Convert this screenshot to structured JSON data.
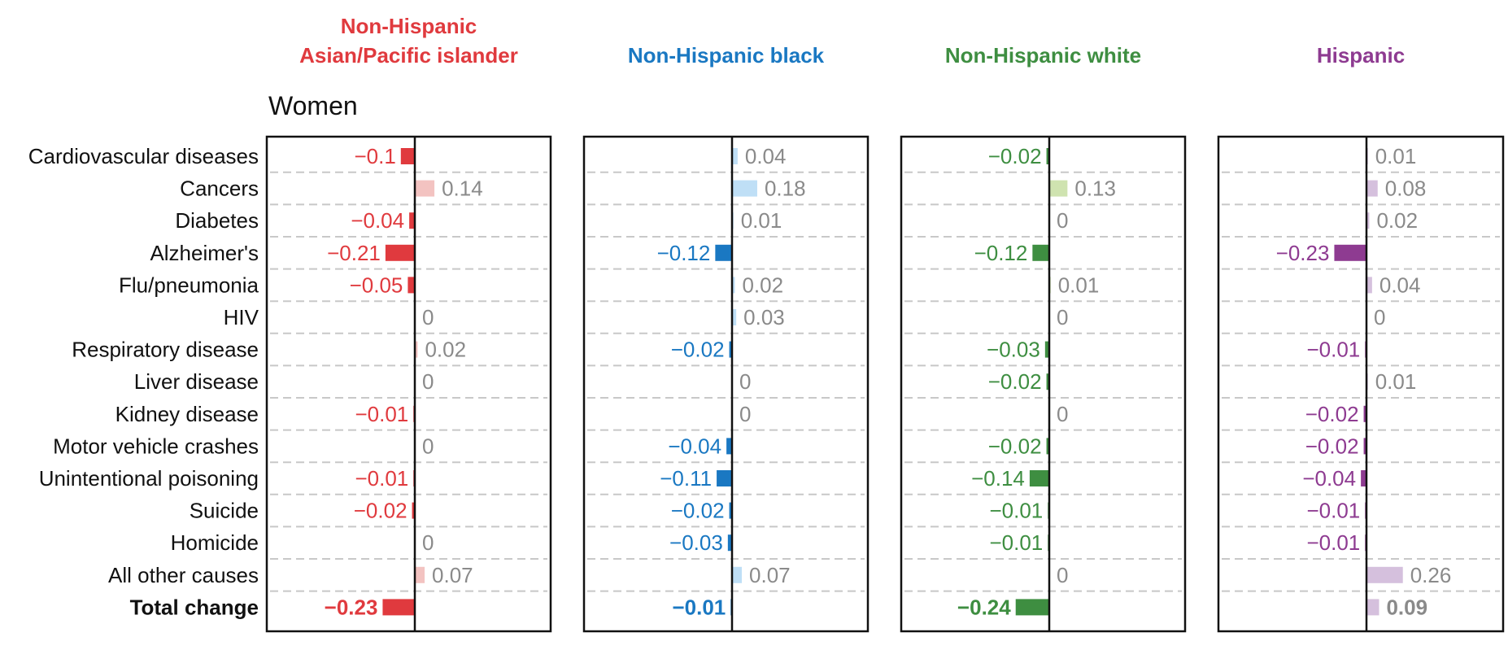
{
  "chart_data": {
    "type": "bar",
    "subtitle": "Women",
    "categories": [
      "Cardiovascular diseases",
      "Cancers",
      "Diabetes",
      "Alzheimer's",
      "Flu/pneumonia",
      "HIV",
      "Respiratory disease",
      "Liver disease",
      "Kidney disease",
      "Motor vehicle crashes",
      "Unintentional poisoning",
      "Suicide",
      "Homicide",
      "All other causes",
      "Total change"
    ],
    "value_labels": {
      "non_hispanic_asian_pacific_islander": [
        "−0.1",
        "0.14",
        "−0.04",
        "−0.21",
        "−0.05",
        "0",
        "0.02",
        "0",
        "−0.01",
        "0",
        "−0.01",
        "−0.02",
        "0",
        "0.07",
        "−0.23"
      ],
      "non_hispanic_black": [
        "0.04",
        "0.18",
        "0.01",
        "−0.12",
        "0.02",
        "0.03",
        "−0.02",
        "0",
        "0",
        "−0.04",
        "−0.11",
        "−0.02",
        "−0.03",
        "0.07",
        "−0.01"
      ],
      "non_hispanic_white": [
        "−0.02",
        "0.13",
        "0",
        "−0.12",
        "0.01",
        "0",
        "−0.03",
        "−0.02",
        "0",
        "−0.02",
        "−0.14",
        "−0.01",
        "−0.01",
        "0",
        "−0.24"
      ],
      "hispanic": [
        "0.01",
        "0.08",
        "0.02",
        "−0.23",
        "0.04",
        "0",
        "−0.01",
        "0.01",
        "−0.02",
        "−0.02",
        "−0.04",
        "−0.01",
        "−0.01",
        "0.26",
        "0.09"
      ]
    },
    "series": [
      {
        "name": "Non-Hispanic Asian/Pacific islander",
        "title_lines": [
          "Non-Hispanic",
          "Asian/Pacific islander"
        ],
        "color": "#e03a3e",
        "light_color": "#f3c3c1",
        "label_key": "non_hispanic_asian_pacific_islander",
        "values": [
          -0.1,
          0.14,
          -0.04,
          -0.21,
          -0.05,
          0,
          0.02,
          0,
          -0.01,
          0,
          -0.01,
          -0.02,
          0,
          0.07,
          -0.23
        ]
      },
      {
        "name": "Non-Hispanic black",
        "title_lines": [
          "Non-Hispanic black"
        ],
        "color": "#1a78c2",
        "light_color": "#bfdff6",
        "label_key": "non_hispanic_black",
        "values": [
          0.04,
          0.18,
          0.01,
          -0.12,
          0.02,
          0.03,
          -0.02,
          0,
          0,
          -0.04,
          -0.11,
          -0.02,
          -0.03,
          0.07,
          -0.01
        ]
      },
      {
        "name": "Non-Hispanic white",
        "title_lines": [
          "Non-Hispanic white"
        ],
        "color": "#3e8e41",
        "light_color": "#cfe3b0",
        "label_key": "non_hispanic_white",
        "values": [
          -0.02,
          0.13,
          0,
          -0.12,
          0.01,
          0,
          -0.03,
          -0.02,
          0,
          -0.02,
          -0.14,
          -0.01,
          -0.01,
          0,
          -0.24
        ]
      },
      {
        "name": "Hispanic",
        "title_lines": [
          "Hispanic"
        ],
        "color": "#8e3b91",
        "light_color": "#d5c0dd",
        "label_key": "hispanic",
        "values": [
          0.01,
          0.08,
          0.02,
          -0.23,
          0.04,
          0,
          -0.01,
          0.01,
          -0.02,
          -0.02,
          -0.04,
          -0.01,
          -0.01,
          0.26,
          0.09
        ]
      }
    ],
    "positive_label_color": "#8a8a8a",
    "grid": true,
    "total_row_bold": true
  }
}
